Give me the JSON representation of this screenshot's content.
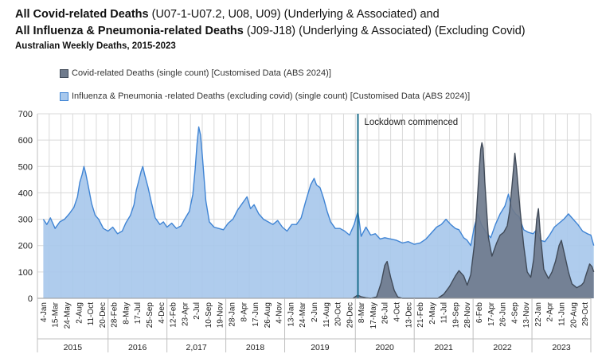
{
  "title": {
    "line1_bold": "All Covid-related Deaths",
    "line1_rest": " (U07-1-U07.2, U08, U09) (Underlying & Associated) and",
    "line2_bold": "All Influenza & Pneumonia-related Deaths",
    "line2_rest": " (J09-J18) (Underlying & Associated) (Excluding Covid)"
  },
  "subtitle": "Australian Weekly Deaths, 2015-2023",
  "colors": {
    "covid_fill": "#6f7b8d",
    "covid_line": "#404a58",
    "flu_fill": "#a8c8ec",
    "flu_line": "#3f84d4",
    "lockdown": "#1c6e8c",
    "grid": "#d9d9d9"
  },
  "chart_data": {
    "type": "area",
    "title": "Australian Weekly Deaths, 2015-2023",
    "xlabel": "",
    "ylabel": "",
    "ylim": [
      0,
      700
    ],
    "yticks": [
      0,
      100,
      200,
      300,
      400,
      500,
      600,
      700
    ],
    "grid": true,
    "legend_position": "top-left",
    "x_tick_labels": [
      "4-Jan",
      "15-Mar",
      "24-May",
      "2-Aug",
      "11-Oct",
      "20-Dec",
      "28-Feb",
      "8-May",
      "17-Jul",
      "25-Sep",
      "4-Dec",
      "12-Feb",
      "23-Apr",
      "2-Jul",
      "10-Sep",
      "19-Nov",
      "28-Jan",
      "8-Apr",
      "17-Jun",
      "26-Aug",
      "4-Nov",
      "13-Jan",
      "24-Mar",
      "2-Jun",
      "11-Aug",
      "20-Oct",
      "29-Dec",
      "8-Mar",
      "17-May",
      "26-Jul",
      "4-Oct",
      "13-Dec",
      "21-Feb",
      "2-May",
      "11-Jul",
      "19-Sep",
      "28-Nov",
      "6-Feb",
      "17-Apr",
      "26-Jun",
      "4-Sep",
      "13-Nov",
      "22-Jan",
      "2-Apr",
      "11-Jun",
      "20-Aug",
      "29-Oct"
    ],
    "years": [
      "2015",
      "2016",
      "2,017",
      "2018",
      "2019",
      "2020",
      "2021",
      "2022",
      "2023"
    ],
    "year_tick_counts": [
      6,
      5,
      5,
      5,
      6,
      5,
      5,
      5,
      5
    ],
    "annotation": "Lockdown commenced",
    "annotation_x_tick": 26.72,
    "series": [
      {
        "name": "Covid-related Deaths (single count) [Customised Data (ABS 2024)]",
        "points": [
          [
            26.3,
            0
          ],
          [
            26.7,
            12
          ],
          [
            27.0,
            6
          ],
          [
            27.4,
            2
          ],
          [
            27.8,
            0
          ],
          [
            28.3,
            5
          ],
          [
            28.7,
            60
          ],
          [
            29.0,
            125
          ],
          [
            29.2,
            140
          ],
          [
            29.5,
            80
          ],
          [
            29.8,
            30
          ],
          [
            30.1,
            5
          ],
          [
            30.5,
            0
          ],
          [
            33.5,
            0
          ],
          [
            34.0,
            15
          ],
          [
            34.5,
            45
          ],
          [
            35.0,
            85
          ],
          [
            35.3,
            105
          ],
          [
            35.7,
            85
          ],
          [
            36.0,
            50
          ],
          [
            36.3,
            90
          ],
          [
            36.6,
            200
          ],
          [
            36.8,
            330
          ],
          [
            37.0,
            475
          ],
          [
            37.15,
            565
          ],
          [
            37.25,
            590
          ],
          [
            37.35,
            570
          ],
          [
            37.5,
            440
          ],
          [
            37.8,
            230
          ],
          [
            38.1,
            160
          ],
          [
            38.5,
            210
          ],
          [
            38.8,
            240
          ],
          [
            39.1,
            250
          ],
          [
            39.4,
            275
          ],
          [
            39.6,
            330
          ],
          [
            39.85,
            450
          ],
          [
            40.05,
            550
          ],
          [
            40.2,
            490
          ],
          [
            40.5,
            330
          ],
          [
            40.8,
            200
          ],
          [
            41.1,
            100
          ],
          [
            41.4,
            80
          ],
          [
            41.65,
            150
          ],
          [
            41.9,
            300
          ],
          [
            42.05,
            340
          ],
          [
            42.2,
            250
          ],
          [
            42.5,
            110
          ],
          [
            42.9,
            75
          ],
          [
            43.2,
            100
          ],
          [
            43.5,
            140
          ],
          [
            43.8,
            200
          ],
          [
            44.0,
            220
          ],
          [
            44.3,
            160
          ],
          [
            44.6,
            100
          ],
          [
            44.9,
            55
          ],
          [
            45.3,
            40
          ],
          [
            45.7,
            50
          ],
          [
            45.9,
            60
          ],
          [
            46.1,
            90
          ],
          [
            46.4,
            130
          ],
          [
            46.6,
            120
          ],
          [
            46.75,
            100
          ]
        ]
      },
      {
        "name": "Influenza & Pneumonia -related Deaths (excluding covid) (single count) [Customised Data (ABS 2024)]",
        "points": [
          [
            0.0,
            300
          ],
          [
            0.3,
            280
          ],
          [
            0.6,
            305
          ],
          [
            1.0,
            265
          ],
          [
            1.4,
            290
          ],
          [
            1.8,
            300
          ],
          [
            2.2,
            320
          ],
          [
            2.6,
            345
          ],
          [
            2.9,
            385
          ],
          [
            3.1,
            440
          ],
          [
            3.3,
            470
          ],
          [
            3.45,
            500
          ],
          [
            3.6,
            475
          ],
          [
            3.8,
            430
          ],
          [
            4.1,
            360
          ],
          [
            4.4,
            315
          ],
          [
            4.7,
            300
          ],
          [
            5.1,
            265
          ],
          [
            5.5,
            255
          ],
          [
            5.9,
            270
          ],
          [
            6.3,
            245
          ],
          [
            6.7,
            255
          ],
          [
            7.0,
            285
          ],
          [
            7.4,
            315
          ],
          [
            7.7,
            355
          ],
          [
            7.9,
            410
          ],
          [
            8.1,
            445
          ],
          [
            8.3,
            480
          ],
          [
            8.45,
            500
          ],
          [
            8.6,
            470
          ],
          [
            8.9,
            420
          ],
          [
            9.2,
            360
          ],
          [
            9.5,
            305
          ],
          [
            9.9,
            280
          ],
          [
            10.2,
            290
          ],
          [
            10.5,
            270
          ],
          [
            10.9,
            285
          ],
          [
            11.3,
            265
          ],
          [
            11.7,
            275
          ],
          [
            12.0,
            300
          ],
          [
            12.4,
            330
          ],
          [
            12.7,
            395
          ],
          [
            12.9,
            490
          ],
          [
            13.05,
            585
          ],
          [
            13.2,
            650
          ],
          [
            13.35,
            620
          ],
          [
            13.5,
            545
          ],
          [
            13.8,
            370
          ],
          [
            14.1,
            290
          ],
          [
            14.5,
            270
          ],
          [
            14.9,
            265
          ],
          [
            15.3,
            260
          ],
          [
            15.7,
            285
          ],
          [
            16.1,
            300
          ],
          [
            16.5,
            335
          ],
          [
            16.9,
            360
          ],
          [
            17.3,
            385
          ],
          [
            17.6,
            340
          ],
          [
            17.9,
            355
          ],
          [
            18.3,
            320
          ],
          [
            18.7,
            300
          ],
          [
            19.1,
            290
          ],
          [
            19.5,
            280
          ],
          [
            19.9,
            295
          ],
          [
            20.3,
            270
          ],
          [
            20.7,
            255
          ],
          [
            21.1,
            280
          ],
          [
            21.5,
            280
          ],
          [
            21.9,
            305
          ],
          [
            22.3,
            370
          ],
          [
            22.7,
            430
          ],
          [
            23.0,
            455
          ],
          [
            23.2,
            430
          ],
          [
            23.5,
            420
          ],
          [
            23.8,
            380
          ],
          [
            24.1,
            330
          ],
          [
            24.4,
            290
          ],
          [
            24.8,
            265
          ],
          [
            25.2,
            265
          ],
          [
            25.6,
            255
          ],
          [
            26.0,
            240
          ],
          [
            26.4,
            280
          ],
          [
            26.72,
            330
          ],
          [
            27.0,
            235
          ],
          [
            27.4,
            270
          ],
          [
            27.8,
            240
          ],
          [
            28.2,
            245
          ],
          [
            28.6,
            225
          ],
          [
            29.0,
            230
          ],
          [
            29.5,
            225
          ],
          [
            30.0,
            220
          ],
          [
            30.5,
            210
          ],
          [
            31.0,
            215
          ],
          [
            31.5,
            205
          ],
          [
            32.0,
            210
          ],
          [
            32.5,
            225
          ],
          [
            33.0,
            250
          ],
          [
            33.4,
            270
          ],
          [
            33.8,
            280
          ],
          [
            34.2,
            300
          ],
          [
            34.6,
            280
          ],
          [
            35.0,
            265
          ],
          [
            35.3,
            260
          ],
          [
            35.7,
            230
          ],
          [
            36.0,
            220
          ],
          [
            36.3,
            200
          ],
          [
            36.6,
            270
          ],
          [
            36.9,
            320
          ],
          [
            37.2,
            280
          ],
          [
            37.6,
            250
          ],
          [
            38.0,
            230
          ],
          [
            38.4,
            280
          ],
          [
            38.8,
            320
          ],
          [
            39.2,
            350
          ],
          [
            39.5,
            395
          ],
          [
            39.8,
            340
          ],
          [
            40.1,
            320
          ],
          [
            40.4,
            310
          ],
          [
            40.8,
            260
          ],
          [
            41.2,
            250
          ],
          [
            41.6,
            245
          ],
          [
            41.9,
            260
          ],
          [
            42.2,
            220
          ],
          [
            42.6,
            215
          ],
          [
            43.0,
            240
          ],
          [
            43.4,
            270
          ],
          [
            43.8,
            285
          ],
          [
            44.2,
            300
          ],
          [
            44.6,
            320
          ],
          [
            45.0,
            300
          ],
          [
            45.4,
            280
          ],
          [
            45.8,
            255
          ],
          [
            46.2,
            245
          ],
          [
            46.5,
            240
          ],
          [
            46.75,
            200
          ]
        ]
      }
    ]
  }
}
